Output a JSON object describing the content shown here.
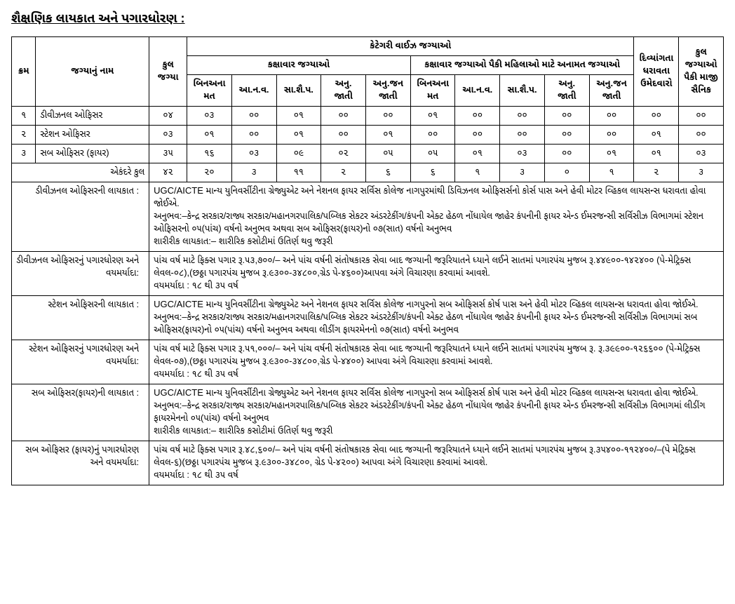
{
  "title": "શૈક્ષણિક લાયકાત અને પગારધોરણ :",
  "colw": {
    "sr": "3.5%",
    "name": "16.5%",
    "total": "5.5%",
    "c": "6.5%",
    "pwd": "6.5%",
    "ex": "6.5%"
  },
  "hdr": {
    "sr": "ક્રમ",
    "name": "જગ્યાનું નામ",
    "total": "કુલ જગ્યા",
    "catwise": "કેટેગરી વાઈઝ જગ્યાઓ",
    "kaxa": "કક્ષાવાર જગ્યાઓ",
    "kaxa_w": "કક્ષાવાર જગ્યાઓ પૈકી મહિલાઓ માટે અનામત જગ્યાઓ",
    "c1": "બિનઅનામત",
    "c2": "આ.ન.વ.",
    "c3": "સા.શૈ.પ.",
    "c4": "અનુ. જાતી",
    "c5": "અનુ.જન જાતી",
    "pwd": "દિવ્યાંગતા ધરાવતા ઉમેદવારો",
    "ex": "કુલ જગ્યાઓ પૈકી માજી સૈનિક"
  },
  "rows": [
    {
      "sr": "૧",
      "name": "ડીવીઝનલ ઓફિસર",
      "total": "૦૪",
      "k": [
        "૦૩",
        "૦૦",
        "૦૧",
        "૦૦",
        "૦૦"
      ],
      "kw": [
        "૦૧",
        "૦૦",
        "૦૦",
        "૦૦",
        "૦૦"
      ],
      "pwd": "૦૦",
      "ex": "૦૦"
    },
    {
      "sr": "૨",
      "name": "સ્ટેશન ઓફિસર",
      "total": "૦૩",
      "k": [
        "૦૧",
        "૦૦",
        "૦૧",
        "૦૦",
        "૦૧"
      ],
      "kw": [
        "૦૦",
        "૦૦",
        "૦૦",
        "૦૦",
        "૦૦"
      ],
      "pwd": "૦૧",
      "ex": "૦૦"
    },
    {
      "sr": "૩",
      "name": "સબ ઓફિસર (ફાયર)",
      "total": "૩૫",
      "k": [
        "૧૬",
        "૦૩",
        "૦૯",
        "૦૨",
        "૦૫"
      ],
      "kw": [
        "૦૫",
        "૦૧",
        "૦૩",
        "૦૦",
        "૦૧"
      ],
      "pwd": "૦૧",
      "ex": "૦૩"
    }
  ],
  "totrow": {
    "label": "એકંદરે કુલ",
    "total": "૪૨",
    "k": [
      "૨૦",
      "૩",
      "૧૧",
      "૨",
      "૬"
    ],
    "kw": [
      "૬",
      "૧",
      "૩",
      "૦",
      "૧"
    ],
    "pwd": "૨",
    "ex": "૩"
  },
  "details": [
    {
      "label": "ડીવીઝનલ ઓફિસરની લાયકાત :",
      "text": "UGC/AICTE માન્ય યુનિવર્સીટીના ગ્રેજ્યુએટ અને નેશનલ ફાયર સર્વિસ કોલેજ નાગપુરમાંથી ડિવિઝનલ ઓફિસર્સનો કોર્સ પાસ અને હેવી મોટર વ્હિકલ લાયસન્સ ધરાવતા હોવા જોઈએ.\nઅનુભવ:–કેન્દ્ર સરકાર/રાજ્ય સરકાર/મહાનગરપાલિક/પબ્લિક સેકટર અંડરટેકીંગ/કંપની એક્ટ હેઠળ નોંધાયેલ જાહેર કંપનીની ફાયર એન્ડ ઈમરજન્સી સર્વિસીઝ વિભાગમાં  સ્ટેશન ઓફિસરનો ૦૫(પાંચ) વર્ષનો અનુભવ અથવા સબ ઓફિસર(ફાયર)નો ૦૭(સાત) વર્ષનો અનુભવ\nશારીરીક લાયકાત:– શારીરિક કસોટીમાં ઉતિર્ણ થવુ જરૂરી"
    },
    {
      "label": "ડીવીઝનલ ઓફિસરનું પગારધોરણ અને વયમર્યાદા:",
      "text": "પાંચ વર્ષ માટે ફિક્સ પગાર રૂ.૫૩,૭૦૦/– અને પાંચ વર્ષની સંતોષકારક સેવા બાદ જગ્યાની જરૂરિયાતને ધ્યાને લઈને સાતમાં પગારપંચ મુજબ રૂ.૪૪૯૦૦-૧૪૨૪૦૦ (પે-મેટ્રિક્સ લેવલ-૦૮),(છઠ્ઠા પગારપંચ મુજબ રૂ.૯૩૦૦-૩૪૮૦૦,ગ્રેડ પે-૪૬૦૦)આપવા અંગે વિચારણા કરવામાં આવશે.\nવયમર્યાદા : ૧૮ થી ૩૫ વર્ષ"
    },
    {
      "label": "સ્ટેશન ઓફિસરની લાયકાત :",
      "text": "UGC/AICTE માન્ય યુનિવર્સીટીના ગ્રેજ્યુએટ અને નેશનલ ફાયર સર્વિસ કોલેજ નાગપુરનો સબ ઓફિસર્સ કોર્ષ પાસ અને હેવી મોટર વ્હિકલ લાયસન્સ ધરાવતા હોવા જોઈએ.\nઅનુભવ:–કેન્દ્ર સરકાર/રાજ્ય સરકાર/મહાનગરપાલિક/પબ્લિક સેકટર અંડરટેકીંગ/કંપની એક્ટ હેઠળ નોંધાયેલ જાહેર કંપનીની ફાયર એન્ડ ઈમરજન્સી સર્વિસીઝ વિભાગમાં  સબ ઓફિસર(ફાયર)નો ૦૫(પાંચ) વર્ષનો અનુભવ અથવા લીડીંગ ફાયરમેનનો ૦૭(સાત) વર્ષનો અનુભવ"
    },
    {
      "label": "સ્ટેશન ઓફિસરનું પગારધોરણ અને વયમર્યાદા:",
      "text": "પાંચ વર્ષ માટે ફિક્સ પગાર રૂ.૫૧,૦૦૦/– અને પાંચ વર્ષની સંતોષકારક સેવા બાદ જગ્યાની જરૂરિયાતને ધ્યાને લઈને સાતમાં પગારપંચ મુજબ રૂ. રૂ.૩૯૯૦૦-૧૨૬૬૦૦ (પે-મેટ્રિક્સ લેવલ-૦૭),(છઠ્ઠા પગારપંચ મુજબ રૂ.૯૩૦૦-૩૪૮૦૦,ગ્રેડ પે-૪૪૦૦) આપવા અંગે વિચારણા કરવામાં આવશે.\nવયમર્યાદા : ૧૮ થી ૩૫ વર્ષ"
    },
    {
      "label": "સબ ઓફિસર(ફાયર)ની લાયકાત :",
      "text": "UGC/AICTE માન્ય યુનિવર્સીટીના ગ્રેજ્યુએટ અને નેશનલ ફાયર સર્વિસ કોલેજ નાગપુરનો સબ ઓફિસર્સ કોર્ષ પાસ અને હેવી મોટર વ્હિકલ લાયસન્સ ધરાવતા હોવા જોઈએ.\nઅનુભવ:–કેન્દ્ર સરકાર/રાજ્ય સરકાર/મહાનગરપાલિક/પબ્લિક સેકટર અંડરટેકીંગ/કંપની એક્ટ હેઠળ નોંધાયેલ જાહેર કંપનીની ફાયર એન્ડ ઈમરજન્સી સર્વિસીઝ વિભાગમાં  લીડીંગ ફાયરમેનનો ૦૫(પાંચ) વર્ષનો અનુભવ\nશારીરીક લાયકાત:– શારીરિક કસોટીમાં ઉતિર્ણ થવુ જરૂરી"
    },
    {
      "label": "સબ ઓફિસર (ફાયર)નું પગારધોરણ અને વયમર્યાદા:",
      "text": "પાંચ વર્ષ માટે ફિક્સ પગાર રૂ.૪૮,૬૦૦/– અને પાંચ વર્ષની સંતોષકારક સેવા બાદ જગ્યાની જરૂરિયાતને ધ્યાને લઈને સાતમાં પગારપંચ મુજબ રૂ.૩૫૪૦૦-૧૧૨૪૦૦/–(પે મેટ્રિક્સ લેવલ-૬)(છઠ્ઠા પગારપંચ મુજબ રૂ.૯૩૦૦-૩૪૮૦૦, ગ્રેડ પે-૪૨૦૦) આપવા અંગે વિચારણા કરવામાં આવશે.\nવયમર્યાદા : ૧૮ થી ૩૫ વર્ષ"
    }
  ]
}
